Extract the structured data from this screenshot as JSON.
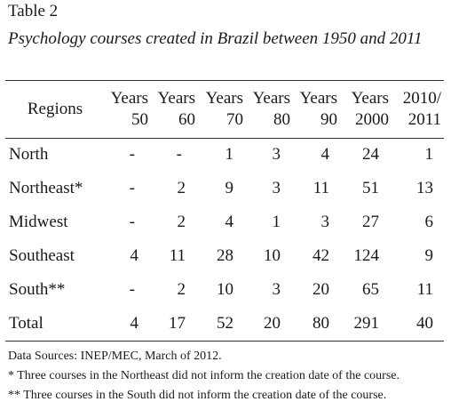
{
  "table": {
    "label": "Table 2",
    "caption": "Psychology courses created in Brazil between 1950 and 2011",
    "region_header": "Regions",
    "columns": [
      {
        "line1": "Years",
        "line2": "50"
      },
      {
        "line1": "Years",
        "line2": "60"
      },
      {
        "line1": "Years",
        "line2": "70"
      },
      {
        "line1": "Years",
        "line2": "80"
      },
      {
        "line1": "Years",
        "line2": "90"
      },
      {
        "line1": "Years",
        "line2": "2000"
      },
      {
        "line1": "2010/",
        "line2": "2011"
      }
    ],
    "rows": [
      {
        "region": "North",
        "values": [
          "-",
          "-",
          "1",
          "3",
          "4",
          "24",
          "1"
        ]
      },
      {
        "region": "Northeast*",
        "values": [
          "-",
          "2",
          "9",
          "3",
          "11",
          "51",
          "13"
        ]
      },
      {
        "region": "Midwest",
        "values": [
          "-",
          "2",
          "4",
          "1",
          "3",
          "27",
          "6"
        ]
      },
      {
        "region": "Southeast",
        "values": [
          "4",
          "11",
          "28",
          "10",
          "42",
          "124",
          "9"
        ]
      },
      {
        "region": "South**",
        "values": [
          "-",
          "2",
          "10",
          "3",
          "20",
          "65",
          "11"
        ]
      },
      {
        "region": "Total",
        "values": [
          "4",
          "17",
          "52",
          "20",
          "80",
          "291",
          "40"
        ]
      }
    ]
  },
  "notes": {
    "source": "Data Sources: INEP/MEC, March of 2012.",
    "footnote1": "* Three courses in the Northeast did not inform the creation date of the course.",
    "footnote2": "** Three courses in the South did not inform the creation date of the course."
  }
}
